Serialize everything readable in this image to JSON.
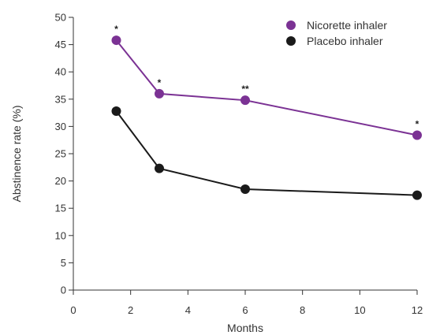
{
  "chart_data": {
    "type": "line",
    "title": "",
    "xlabel": "Months",
    "ylabel": "Abstinence rate (%)",
    "xlim": [
      0,
      12
    ],
    "ylim": [
      0,
      50
    ],
    "xticks": [
      0,
      2,
      4,
      6,
      8,
      10,
      12
    ],
    "yticks": [
      0,
      5,
      10,
      15,
      20,
      25,
      30,
      35,
      40,
      45,
      50
    ],
    "grid": false,
    "legend_position": "top-right",
    "series": [
      {
        "name": "Nicorette inhaler",
        "color": "#7b3294",
        "x": [
          1.5,
          3,
          6,
          12
        ],
        "y": [
          45.8,
          36.0,
          34.8,
          28.4
        ],
        "annotations": [
          "*",
          "*",
          "**",
          "*"
        ]
      },
      {
        "name": "Placebo inhaler",
        "color": "#1a1a1a",
        "x": [
          1.5,
          3,
          6,
          12
        ],
        "y": [
          32.8,
          22.3,
          18.5,
          17.4
        ],
        "annotations": [
          "",
          "",
          "",
          ""
        ]
      }
    ]
  }
}
